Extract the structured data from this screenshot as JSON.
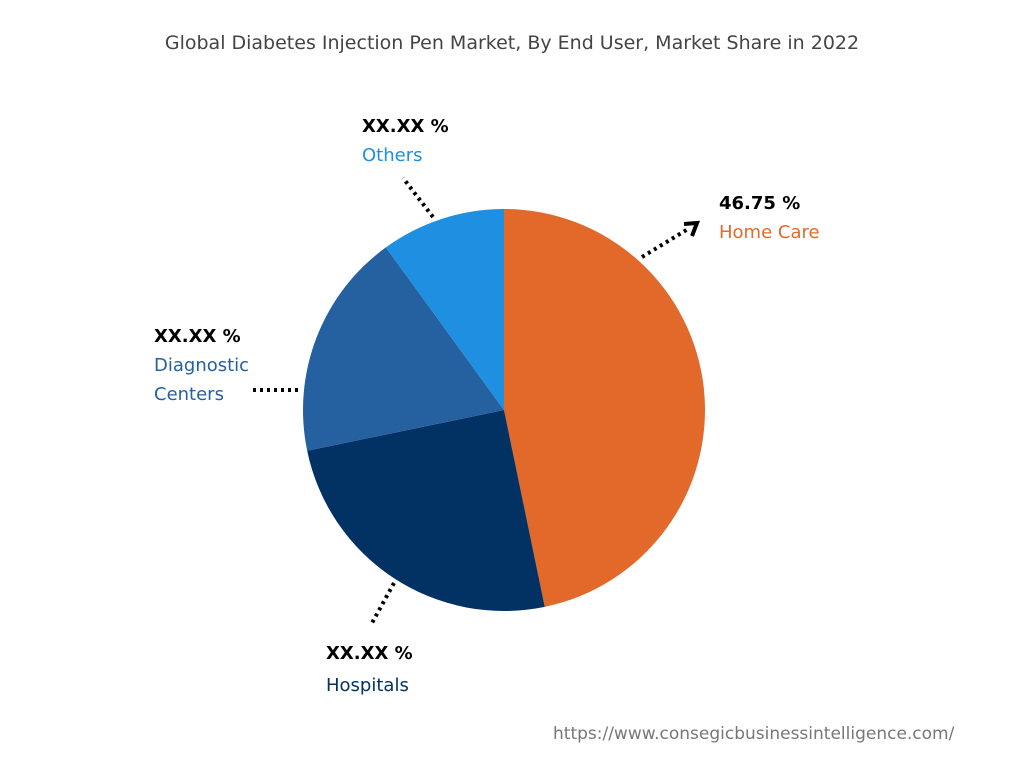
{
  "chart_data": {
    "type": "pie",
    "title": "Global Diabetes Injection Pen Market, By End User, Market Share in 2022",
    "slices": [
      {
        "name": "Home Care",
        "value": 46.75,
        "label": "46.75 %",
        "color": "#E2692A"
      },
      {
        "name": "Hospitals",
        "value": 25.0,
        "label": "XX.XX %",
        "color": "#023263"
      },
      {
        "name": "Diagnostic Centers",
        "value": 18.25,
        "label": "XX.XX %",
        "color": "#2560A0"
      },
      {
        "name": "Others",
        "value": 10.0,
        "label": "XX.XX %",
        "color": "#1E8FE1"
      }
    ],
    "start_angle": "12 o'clock, clockwise"
  },
  "labels": {
    "diagnostic_line1": "Diagnostic",
    "diagnostic_line2": "Centers"
  },
  "source": "https://www.consegicbusinessintelligence.com/"
}
